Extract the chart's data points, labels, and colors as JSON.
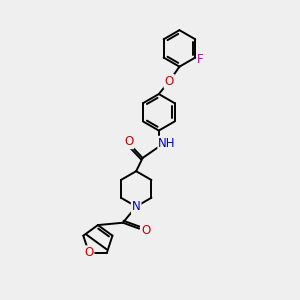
{
  "bg_color": "#efefef",
  "atom_colors": {
    "C": "#000000",
    "N": "#0000cc",
    "O": "#cc0000",
    "F": "#cc00cc",
    "H": "#008080"
  },
  "bond_color": "#000000",
  "bond_width": 1.4,
  "font_size": 8.5,
  "ring_r": 0.62,
  "pip_r": 0.6
}
